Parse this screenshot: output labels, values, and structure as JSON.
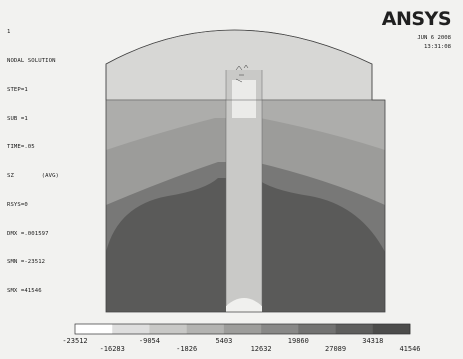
{
  "header": {
    "window_number": "1",
    "lines": [
      "NODAL SOLUTION",
      "STEP=1",
      "SUB =1",
      "TIME=.05",
      "SZ        (AVG)",
      "RSYS=0",
      "DMX =.001597",
      "SMN =-23512",
      "SMX =41546"
    ],
    "logo": "ANSYS",
    "date": "JUN  6 2008",
    "time": "13:31:08"
  },
  "legend": {
    "colors": [
      "#ffffff",
      "#dedede",
      "#c8c8c6",
      "#b3b3b1",
      "#9d9d9b",
      "#888887",
      "#727271",
      "#5e5e5d",
      "#4c4c4b"
    ],
    "labels": [
      "-23512",
      "-16283",
      "-9054",
      "-1826",
      "5403",
      "12632",
      "19860",
      "27089",
      "34318",
      "41546"
    ]
  },
  "plot": {
    "band_colors": {
      "cap": "#d7d7d5",
      "upper": "#adadab",
      "middle": "#9c9c9a",
      "lower": "#787877",
      "bottom": "#5a5a59",
      "insert_outer": "#c9c9c7",
      "insert_inner": "#ebebe9"
    }
  }
}
